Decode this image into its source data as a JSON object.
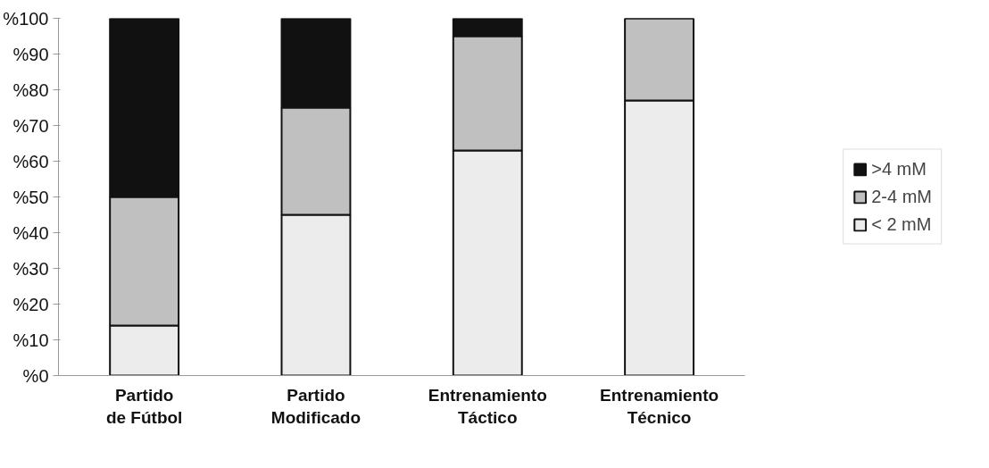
{
  "chart_data": {
    "type": "bar",
    "stacked": true,
    "categories": [
      "Partido\nde Fútbol",
      "Partido\nModificado",
      "Entrenamiento\nTáctico",
      "Entrenamiento\nTécnico"
    ],
    "series": [
      {
        "name": "< 2 mM",
        "color": "#ececec",
        "values": [
          14,
          45,
          63,
          77
        ]
      },
      {
        "name": "2-4 mM",
        "color": "#c0c0c0",
        "values": [
          36,
          30,
          32,
          23
        ]
      },
      {
        "name": ">4 mM",
        "color": "#111111",
        "values": [
          50,
          25,
          5,
          0
        ]
      }
    ],
    "ylim": [
      0,
      100
    ],
    "yticks": [
      {
        "value": 0,
        "label": "%0"
      },
      {
        "value": 10,
        "label": "%10"
      },
      {
        "value": 20,
        "label": "%20"
      },
      {
        "value": 30,
        "label": "%30"
      },
      {
        "value": 40,
        "label": "%40"
      },
      {
        "value": 50,
        "label": "%50"
      },
      {
        "value": 60,
        "label": "%60"
      },
      {
        "value": 70,
        "label": "%70"
      },
      {
        "value": 80,
        "label": "%80"
      },
      {
        "value": 90,
        "label": "%90"
      },
      {
        "value": 100,
        "label": "%100"
      }
    ],
    "grid": false,
    "legend": "right"
  }
}
